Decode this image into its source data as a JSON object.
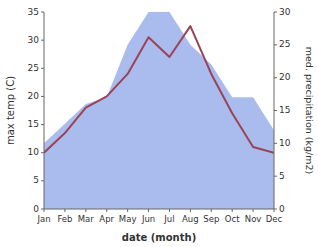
{
  "chart_data": {
    "type": "line",
    "categories": [
      "Jan",
      "Feb",
      "Mar",
      "Apr",
      "May",
      "Jun",
      "Jul",
      "Aug",
      "Sep",
      "Oct",
      "Nov",
      "Dec"
    ],
    "xlabel": "date (month)",
    "ylabel": "max temp (C)",
    "y2label": "med. precipitation (kg/m2)",
    "ylim": [
      0,
      35
    ],
    "yticks": [
      0,
      5,
      10,
      15,
      20,
      25,
      30,
      35
    ],
    "y2lim": [
      0,
      30
    ],
    "y2ticks": [
      0,
      5,
      10,
      15,
      20,
      25,
      30
    ],
    "series": [
      {
        "type": "area",
        "color": "#aabbee",
        "axis": "y2",
        "values": [
          10,
          13,
          16,
          17,
          25,
          30,
          30,
          25,
          22,
          17,
          17,
          12
        ]
      },
      {
        "type": "line",
        "color": "#994455",
        "values": [
          10,
          13.5,
          18,
          20,
          24,
          30.5,
          27,
          32.5,
          24,
          17,
          11,
          10
        ]
      }
    ]
  }
}
